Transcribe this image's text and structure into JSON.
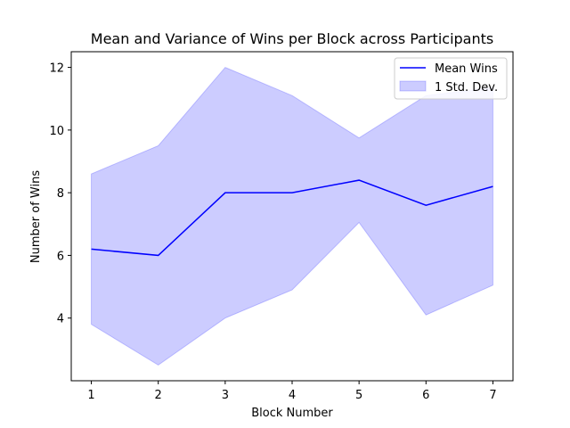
{
  "chart_data": {
    "type": "line",
    "title": "Mean and Variance of Wins per Block across Participants",
    "xlabel": "Block Number",
    "ylabel": "Number of Wins",
    "x": [
      1,
      2,
      3,
      4,
      5,
      6,
      7
    ],
    "xticks": [
      "1",
      "2",
      "3",
      "4",
      "5",
      "6",
      "7"
    ],
    "yticks": [
      "4",
      "6",
      "8",
      "10",
      "12"
    ],
    "ylim": [
      2.0,
      12.5
    ],
    "xlim": [
      0.7,
      7.3
    ],
    "legend_position": "upper-right",
    "series": [
      {
        "name": "Mean Wins",
        "kind": "line",
        "color": "#0000ff",
        "values": [
          6.2,
          6.0,
          8.0,
          8.0,
          8.4,
          7.6,
          8.2
        ]
      },
      {
        "name": "1 Std. Dev.",
        "kind": "band",
        "color": "#0000ff",
        "opacity": 0.2,
        "lower": [
          3.8,
          2.5,
          4.0,
          4.9,
          7.05,
          4.1,
          5.05
        ],
        "upper": [
          8.6,
          9.5,
          12.0,
          11.1,
          9.75,
          11.1,
          11.35
        ]
      }
    ]
  }
}
